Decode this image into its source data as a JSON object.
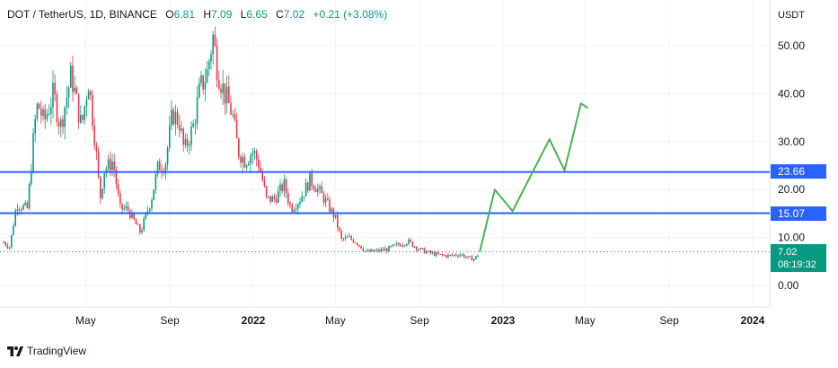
{
  "legend": {
    "symbol": "DOT / TetherUS, 1D, BINANCE",
    "open_label": "O",
    "open": "6.81",
    "high_label": "H",
    "high": "7.09",
    "low_label": "L",
    "low": "6.65",
    "close_label": "C",
    "close": "7.02",
    "change": "+0.21 (+3.08%)"
  },
  "axis_unit": "USDT",
  "brand": "TradingView",
  "countdown": "08:19:32",
  "colors": {
    "up": "#089981",
    "down": "#f23645",
    "level": "#2962ff",
    "projection": "#4caf50",
    "grid": "#f0f3fa",
    "text": "#131722"
  },
  "chart_data": {
    "type": "candlestick",
    "y_unit": "USDT",
    "ylim": [
      -3,
      58
    ],
    "y_ticks": [
      "0.00",
      "10.00",
      "20.00",
      "30.00",
      "40.00",
      "50.00"
    ],
    "x_ticks": [
      "May",
      "Sep",
      "2022",
      "May",
      "Sep",
      "2023",
      "May",
      "Sep",
      "2024"
    ],
    "grid": true,
    "current_price": "7.02",
    "horizontal_levels": [
      {
        "label": "23.66",
        "value": 23.66
      },
      {
        "label": "15.07",
        "value": 15.07
      }
    ],
    "price_path": [
      [
        "2021-01-01",
        9
      ],
      [
        "2021-01-10",
        8
      ],
      [
        "2021-01-20",
        17
      ],
      [
        "2021-02-05",
        16
      ],
      [
        "2021-02-15",
        33
      ],
      [
        "2021-02-20",
        38
      ],
      [
        "2021-03-01",
        34
      ],
      [
        "2021-03-15",
        40
      ],
      [
        "2021-03-25",
        33
      ],
      [
        "2021-04-10",
        44
      ],
      [
        "2021-04-25",
        33
      ],
      [
        "2021-05-05",
        43
      ],
      [
        "2021-05-15",
        30
      ],
      [
        "2021-05-22",
        18
      ],
      [
        "2021-05-28",
        24
      ],
      [
        "2021-06-10",
        26
      ],
      [
        "2021-06-20",
        16
      ],
      [
        "2021-07-01",
        16
      ],
      [
        "2021-07-20",
        11
      ],
      [
        "2021-08-05",
        18
      ],
      [
        "2021-08-15",
        25
      ],
      [
        "2021-08-25",
        25
      ],
      [
        "2021-09-05",
        36
      ],
      [
        "2021-09-15",
        34
      ],
      [
        "2021-09-22",
        28
      ],
      [
        "2021-10-05",
        33
      ],
      [
        "2021-10-15",
        41
      ],
      [
        "2021-10-25",
        44
      ],
      [
        "2021-11-03",
        52
      ],
      [
        "2021-11-10",
        45
      ],
      [
        "2021-11-20",
        40
      ],
      [
        "2021-12-01",
        36
      ],
      [
        "2021-12-10",
        28
      ],
      [
        "2021-12-20",
        26
      ],
      [
        "2022-01-01",
        28
      ],
      [
        "2022-01-10",
        25
      ],
      [
        "2022-01-20",
        18
      ],
      [
        "2022-02-01",
        18
      ],
      [
        "2022-02-15",
        21
      ],
      [
        "2022-02-25",
        16
      ],
      [
        "2022-03-10",
        18
      ],
      [
        "2022-03-25",
        22
      ],
      [
        "2022-04-01",
        21
      ],
      [
        "2022-04-15",
        18
      ],
      [
        "2022-05-01",
        14
      ],
      [
        "2022-05-10",
        9.5
      ],
      [
        "2022-05-20",
        10
      ],
      [
        "2022-06-01",
        9
      ],
      [
        "2022-06-15",
        7
      ],
      [
        "2022-07-01",
        7.2
      ],
      [
        "2022-07-15",
        7.5
      ],
      [
        "2022-08-01",
        8.5
      ],
      [
        "2022-08-15",
        9.2
      ],
      [
        "2022-09-01",
        7.5
      ],
      [
        "2022-09-15",
        6.8
      ],
      [
        "2022-10-01",
        6.3
      ],
      [
        "2022-10-15",
        6.2
      ],
      [
        "2022-11-01",
        6.5
      ],
      [
        "2022-11-09",
        5.8
      ],
      [
        "2022-11-20",
        5.5
      ],
      [
        "2022-11-28",
        6.9
      ]
    ],
    "projection_path": [
      [
        "2022-11-28",
        7
      ],
      [
        "2022-12-20",
        20
      ],
      [
        "2023-01-15",
        15.5
      ],
      [
        "2023-03-10",
        30.5
      ],
      [
        "2023-04-01",
        24
      ],
      [
        "2023-04-25",
        38
      ],
      [
        "2023-05-05",
        37
      ]
    ]
  }
}
